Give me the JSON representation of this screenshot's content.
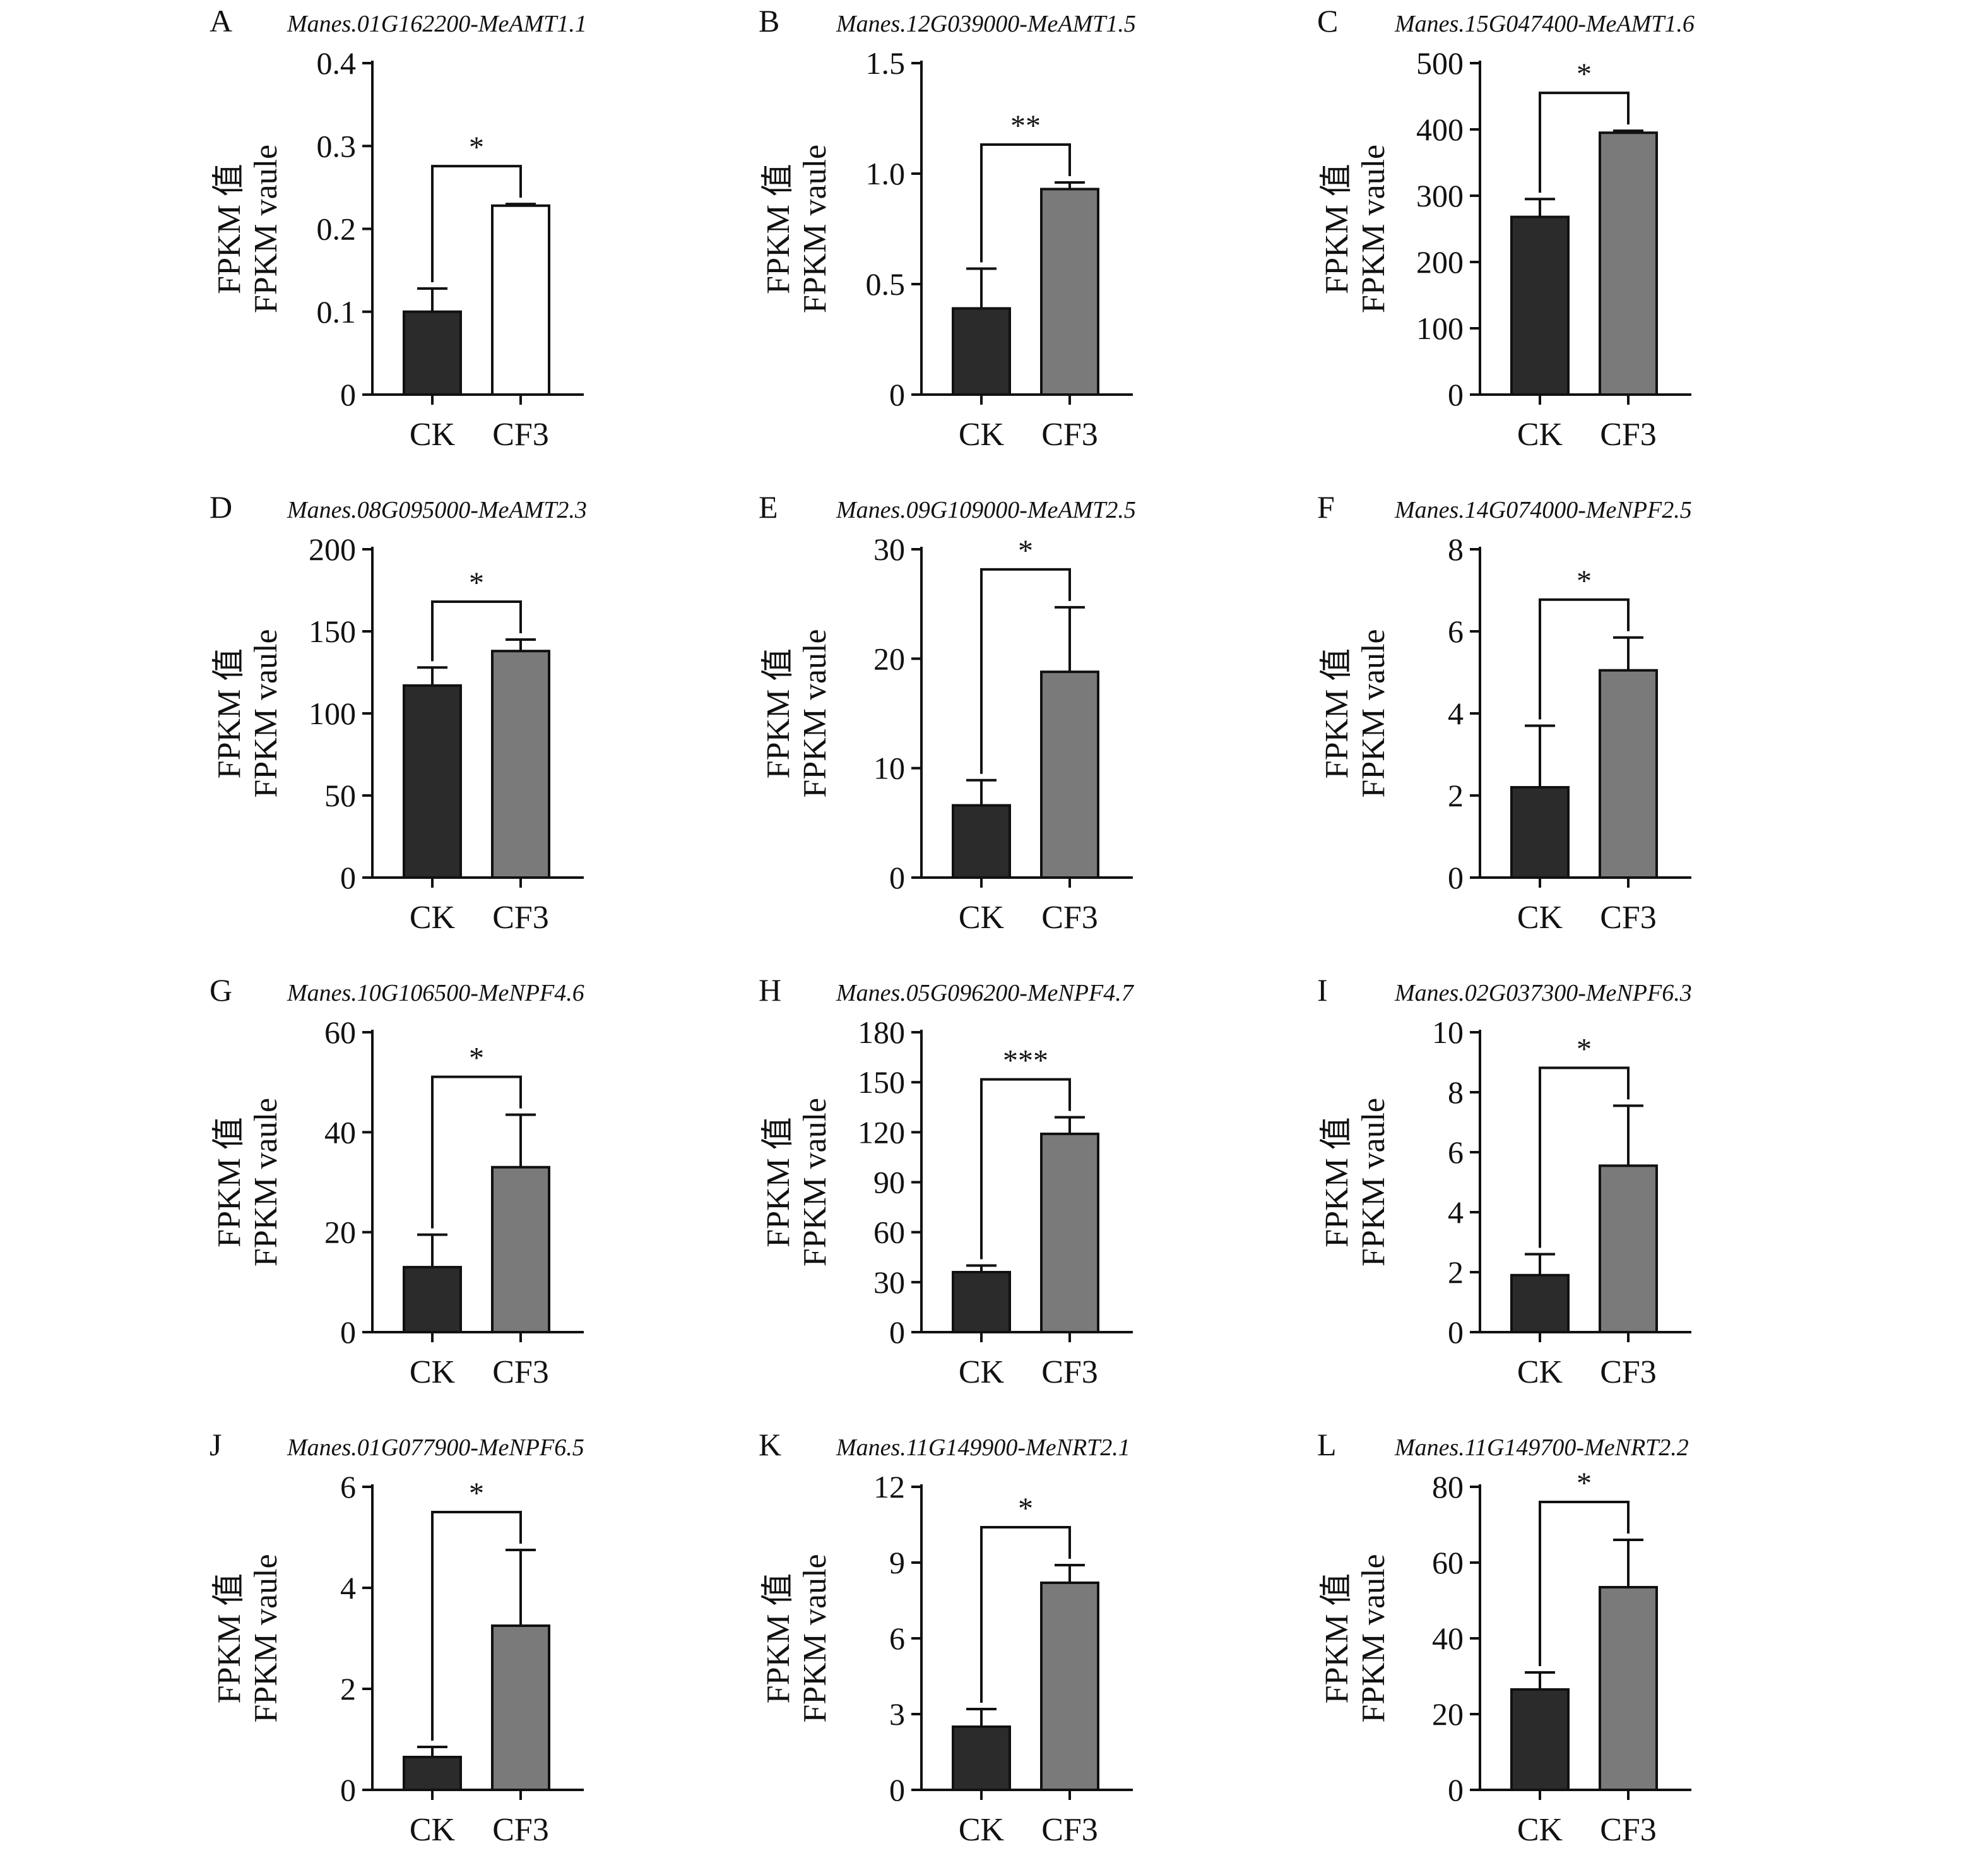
{
  "figure": {
    "ylabel_line1": "FPKM 值",
    "ylabel_line2": "FPKM vaule",
    "colors": {
      "ck": "#2b2b2b",
      "cf3": "#7a7a7a",
      "cf3_panel_a": "#ffffff",
      "stroke": "#111111"
    }
  },
  "chart_data": [
    {
      "type": "bar",
      "letter": "A",
      "title": "Manes.01G162200-MeAMT1.1",
      "categories": [
        "CK",
        "CF3"
      ],
      "values": [
        0.1,
        0.228
      ],
      "errors": [
        0.028,
        0.002
      ],
      "ylim": [
        0,
        0.4
      ],
      "yticks": [
        "0",
        "0.1",
        "0.2",
        "0.3",
        "0.4"
      ],
      "significance": "*",
      "bar_colors": [
        "#2b2b2b",
        "#ffffff"
      ],
      "ylabel": "FPKM 值 FPKM vaule"
    },
    {
      "type": "bar",
      "letter": "B",
      "title": "Manes.12G039000-MeAMT1.5",
      "categories": [
        "CK",
        "CF3"
      ],
      "values": [
        0.39,
        0.93
      ],
      "errors": [
        0.18,
        0.03
      ],
      "ylim": [
        0,
        1.5
      ],
      "yticks": [
        "0",
        "0.5",
        "1.0",
        "1.5"
      ],
      "significance": "**",
      "bar_colors": [
        "#2b2b2b",
        "#7a7a7a"
      ],
      "ylabel": "FPKM 值 FPKM vaule"
    },
    {
      "type": "bar",
      "letter": "C",
      "title": "Manes.15G047400-MeAMT1.6",
      "categories": [
        "CK",
        "CF3"
      ],
      "values": [
        268,
        395
      ],
      "errors": [
        27,
        3
      ],
      "ylim": [
        0,
        500
      ],
      "yticks": [
        "0",
        "100",
        "200",
        "300",
        "400",
        "500"
      ],
      "significance": "*",
      "bar_colors": [
        "#2b2b2b",
        "#7a7a7a"
      ],
      "ylabel": "FPKM 值 FPKM vaule"
    },
    {
      "type": "bar",
      "letter": "D",
      "title": "Manes.08G095000-MeAMT2.3",
      "categories": [
        "CK",
        "CF3"
      ],
      "values": [
        117,
        138
      ],
      "errors": [
        11,
        7
      ],
      "ylim": [
        0,
        200
      ],
      "yticks": [
        "0",
        "50",
        "100",
        "150",
        "200"
      ],
      "significance": "*",
      "bar_colors": [
        "#2b2b2b",
        "#7a7a7a"
      ],
      "ylabel": "FPKM 值 FPKM vaule"
    },
    {
      "type": "bar",
      "letter": "E",
      "title": "Manes.09G109000-MeAMT2.5",
      "categories": [
        "CK",
        "CF3"
      ],
      "values": [
        6.6,
        18.8
      ],
      "errors": [
        2.3,
        5.9
      ],
      "ylim": [
        0,
        30
      ],
      "yticks": [
        "0",
        "10",
        "20",
        "30"
      ],
      "significance": "*",
      "bar_colors": [
        "#2b2b2b",
        "#7a7a7a"
      ],
      "ylabel": "FPKM 值 FPKM vaule"
    },
    {
      "type": "bar",
      "letter": "F",
      "title": "Manes.14G074000-MeNPF2.5",
      "categories": [
        "CK",
        "CF3"
      ],
      "values": [
        2.2,
        5.05
      ],
      "errors": [
        1.5,
        0.8
      ],
      "ylim": [
        0,
        8
      ],
      "yticks": [
        "0",
        "2",
        "4",
        "6",
        "8"
      ],
      "significance": "*",
      "bar_colors": [
        "#2b2b2b",
        "#7a7a7a"
      ],
      "ylabel": "FPKM 值 FPKM vaule"
    },
    {
      "type": "bar",
      "letter": "G",
      "title": "Manes.10G106500-MeNPF4.6",
      "categories": [
        "CK",
        "CF3"
      ],
      "values": [
        13,
        33
      ],
      "errors": [
        6.5,
        10.5
      ],
      "ylim": [
        0,
        60
      ],
      "yticks": [
        "0",
        "20",
        "40",
        "60"
      ],
      "significance": "*",
      "bar_colors": [
        "#2b2b2b",
        "#7a7a7a"
      ],
      "ylabel": "FPKM 值 FPKM vaule"
    },
    {
      "type": "bar",
      "letter": "H",
      "title": "Manes.05G096200-MeNPF4.7",
      "categories": [
        "CK",
        "CF3"
      ],
      "values": [
        36,
        119
      ],
      "errors": [
        4,
        10
      ],
      "ylim": [
        0,
        180
      ],
      "yticks": [
        "0",
        "30",
        "60",
        "90",
        "120",
        "150",
        "180"
      ],
      "significance": "***",
      "bar_colors": [
        "#2b2b2b",
        "#7a7a7a"
      ],
      "ylabel": "FPKM 值 FPKM vaule"
    },
    {
      "type": "bar",
      "letter": "I",
      "title": "Manes.02G037300-MeNPF6.3",
      "categories": [
        "CK",
        "CF3"
      ],
      "values": [
        1.9,
        5.55
      ],
      "errors": [
        0.7,
        2.0
      ],
      "ylim": [
        0,
        10
      ],
      "yticks": [
        "0",
        "2",
        "4",
        "6",
        "8",
        "10"
      ],
      "significance": "*",
      "bar_colors": [
        "#2b2b2b",
        "#7a7a7a"
      ],
      "ylabel": "FPKM 值 FPKM vaule"
    },
    {
      "type": "bar",
      "letter": "J",
      "title": "Manes.01G077900-MeNPF6.5",
      "categories": [
        "CK",
        "CF3"
      ],
      "values": [
        0.65,
        3.25
      ],
      "errors": [
        0.2,
        1.5
      ],
      "ylim": [
        0,
        6
      ],
      "yticks": [
        "0",
        "2",
        "4",
        "6"
      ],
      "significance": "*",
      "bar_colors": [
        "#2b2b2b",
        "#7a7a7a"
      ],
      "ylabel": "FPKM 值 FPKM vaule"
    },
    {
      "type": "bar",
      "letter": "K",
      "title": "Manes.11G149900-MeNRT2.1",
      "categories": [
        "CK",
        "CF3"
      ],
      "values": [
        2.5,
        8.2
      ],
      "errors": [
        0.7,
        0.7
      ],
      "ylim": [
        0,
        12
      ],
      "yticks": [
        "0",
        "3",
        "6",
        "9",
        "12"
      ],
      "significance": "*",
      "bar_colors": [
        "#2b2b2b",
        "#7a7a7a"
      ],
      "ylabel": "FPKM 值 FPKM vaule"
    },
    {
      "type": "bar",
      "letter": "L",
      "title": "Manes.11G149700-MeNRT2.2",
      "categories": [
        "CK",
        "CF3"
      ],
      "values": [
        26.5,
        53.5
      ],
      "errors": [
        4.5,
        12.5
      ],
      "ylim": [
        0,
        80
      ],
      "yticks": [
        "0",
        "20",
        "40",
        "60",
        "80"
      ],
      "significance": "*",
      "bar_colors": [
        "#2b2b2b",
        "#7a7a7a"
      ],
      "ylabel": "FPKM 值 FPKM vaule"
    }
  ]
}
